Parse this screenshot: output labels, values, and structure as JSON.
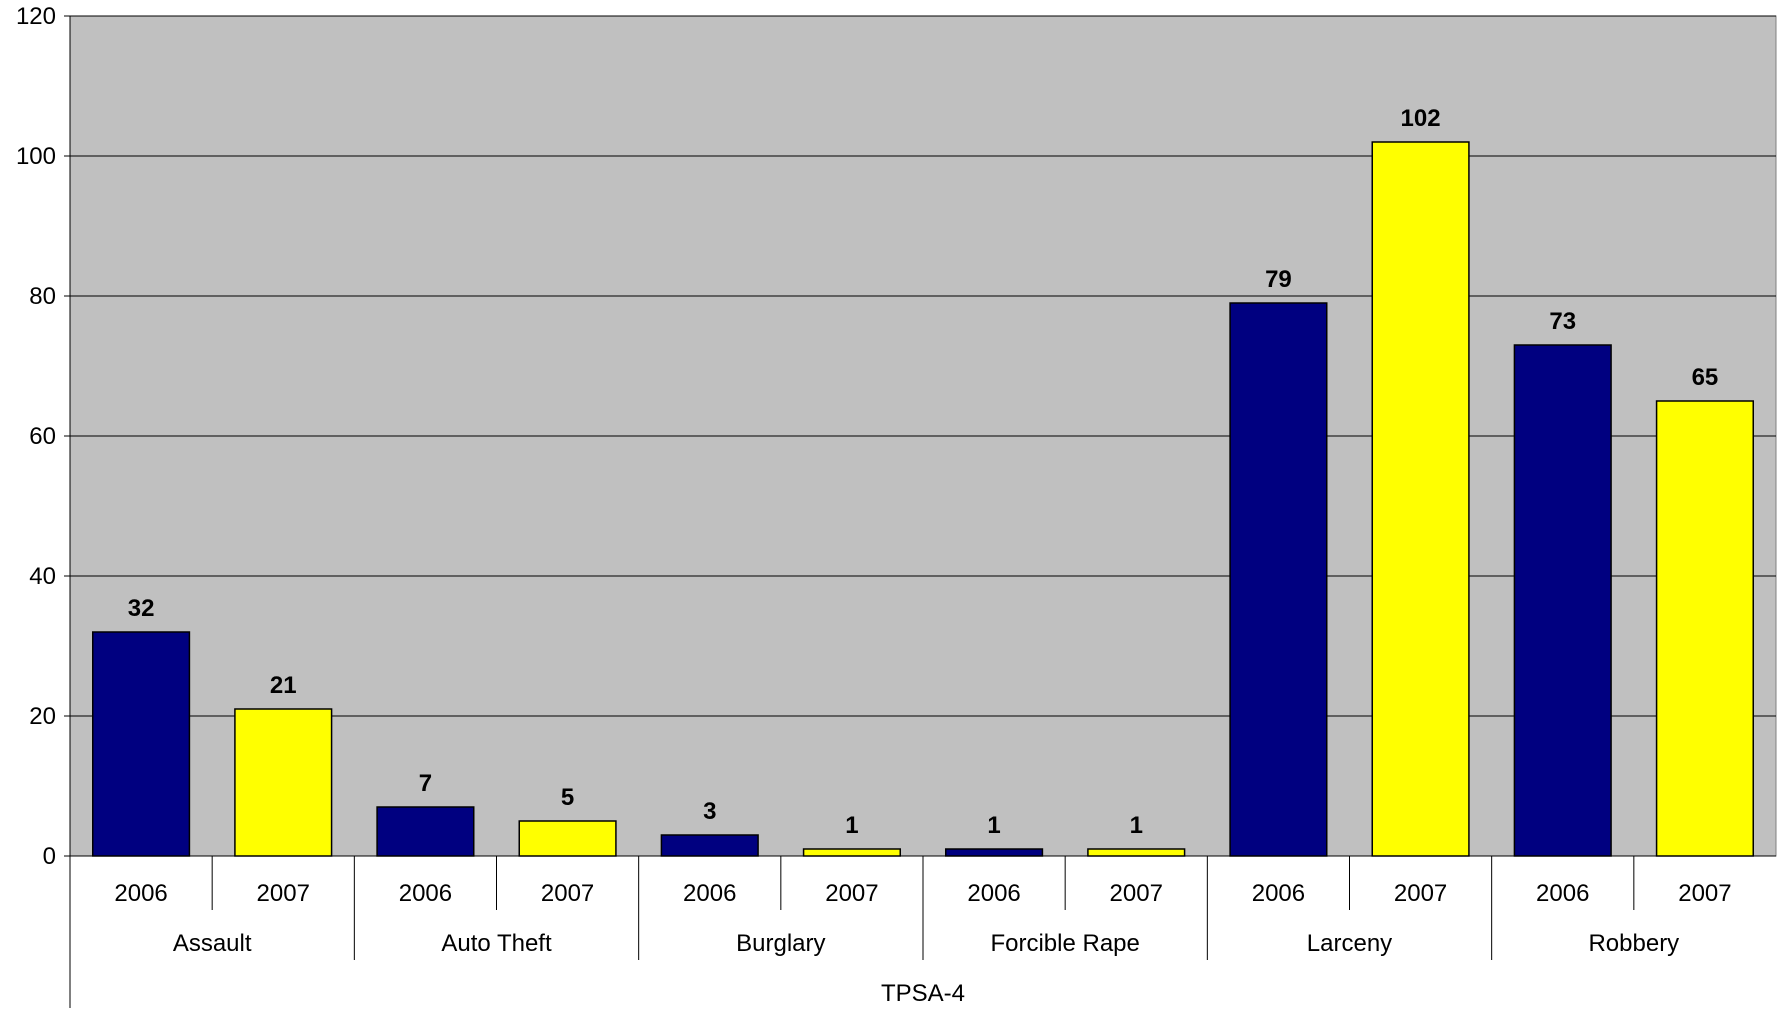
{
  "chart_data": {
    "type": "bar",
    "title": "",
    "ylim": [
      0,
      120
    ],
    "yticks": [
      0,
      20,
      40,
      60,
      80,
      100,
      120
    ],
    "grid": true,
    "plot_background": "#c0c0c0",
    "x_outer_label": "TPSA-4",
    "colors": {
      "2006": "#000080",
      "2007": "#ffff00"
    },
    "groups": [
      {
        "name": "Assault",
        "bars": [
          {
            "label": "2006",
            "value": 32
          },
          {
            "label": "2007",
            "value": 21
          }
        ]
      },
      {
        "name": "Auto Theft",
        "bars": [
          {
            "label": "2006",
            "value": 7
          },
          {
            "label": "2007",
            "value": 5
          }
        ]
      },
      {
        "name": "Burglary",
        "bars": [
          {
            "label": "2006",
            "value": 3
          },
          {
            "label": "2007",
            "value": 1
          }
        ]
      },
      {
        "name": "Forcible Rape",
        "bars": [
          {
            "label": "2006",
            "value": 1
          },
          {
            "label": "2007",
            "value": 1
          }
        ]
      },
      {
        "name": "Larceny",
        "bars": [
          {
            "label": "2006",
            "value": 79
          },
          {
            "label": "2007",
            "value": 102
          }
        ]
      },
      {
        "name": "Robbery",
        "bars": [
          {
            "label": "2006",
            "value": 73
          },
          {
            "label": "2007",
            "value": 65
          }
        ]
      }
    ]
  }
}
